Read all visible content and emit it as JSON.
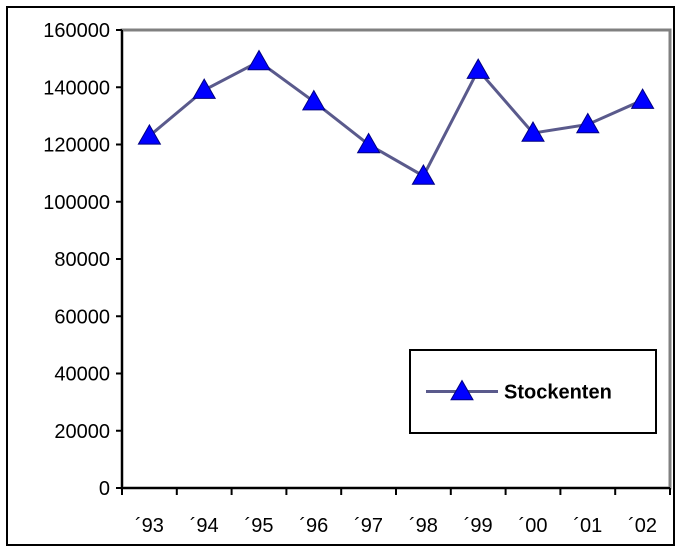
{
  "chart_data": {
    "type": "line",
    "categories": [
      "´93",
      "´94",
      "´95",
      "´96",
      "´97",
      "´98",
      "´99",
      "´00",
      "´01",
      "´02"
    ],
    "series": [
      {
        "name": "Stockenten",
        "values": [
          123000,
          139000,
          149000,
          135000,
          120000,
          109000,
          146000,
          124000,
          127000,
          135500
        ],
        "line_color": "#5a5a8c",
        "marker": "triangle",
        "marker_color": "#0000ff"
      }
    ],
    "y_ticks": [
      "0",
      "20000",
      "40000",
      "60000",
      "80000",
      "100000",
      "120000",
      "140000",
      "160000"
    ],
    "ylim": [
      0,
      160000
    ],
    "grid": false,
    "plot_border_color": "#808080",
    "legend": {
      "placement": "bottom-right",
      "label": "Stockenten"
    },
    "title": "",
    "xlabel": "",
    "ylabel": ""
  }
}
